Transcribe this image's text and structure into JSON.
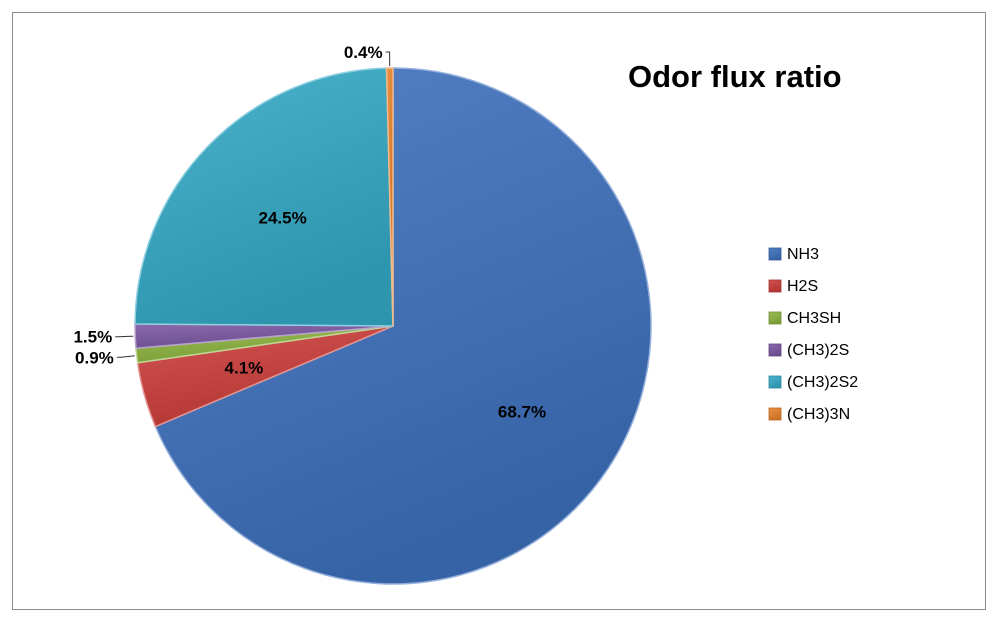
{
  "chart_data": {
    "type": "pie",
    "title": "Odor flux ratio",
    "categories": [
      "NH3",
      "H2S",
      "CH3SH",
      "(CH3)2S",
      "(CH3)2S2",
      "(CH3)3N"
    ],
    "values": [
      68.7,
      4.1,
      0.9,
      1.5,
      24.5,
      0.4
    ],
    "labels": [
      "68.7%",
      "4.1%",
      "0.9%",
      "1.5%",
      "24.5%",
      "0.4%"
    ],
    "colors": [
      "#3d6fbd",
      "#cc3d3a",
      "#8cb43f",
      "#7a56a2",
      "#34a9c6",
      "#e8822a"
    ],
    "legend_position": "right",
    "start_angle_deg": 0,
    "direction": "clockwise"
  }
}
